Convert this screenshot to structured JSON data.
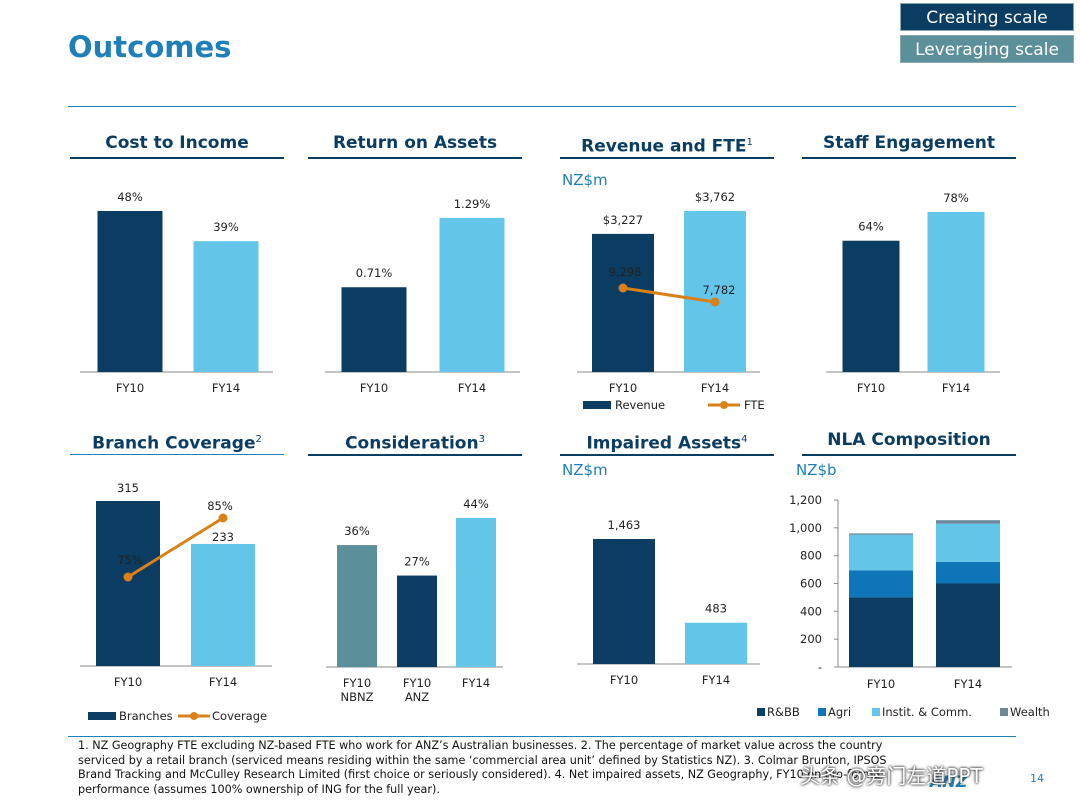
{
  "header": {
    "title": "Outcomes",
    "tags": [
      "Creating scale",
      "Leveraging scale"
    ]
  },
  "colors": {
    "dark": "#0b3d63",
    "light": "#63c5e8",
    "teal": "#5b8f99",
    "mid": "#0e75b8",
    "orange": "#d98118",
    "grey": "#6a8a99"
  },
  "panels": [
    {
      "title": "Cost to Income",
      "sup": ""
    },
    {
      "title": "Return on Assets",
      "sup": ""
    },
    {
      "title": "Revenue and FTE",
      "sup": "1",
      "unit": "NZ$m"
    },
    {
      "title": "Staff Engagement",
      "sup": ""
    },
    {
      "title": "Branch Coverage",
      "sup": "2"
    },
    {
      "title": "Consideration",
      "sup": "3"
    },
    {
      "title": "Impaired Assets",
      "sup": "4",
      "unit": "NZ$m"
    },
    {
      "title": "NLA Composition",
      "sup": "",
      "unit": "NZ$b"
    }
  ],
  "chart_data": [
    {
      "type": "bar",
      "title": "Cost to Income",
      "categories": [
        "FY10",
        "FY14"
      ],
      "values": [
        48,
        39
      ],
      "labels": [
        "48%",
        "39%"
      ]
    },
    {
      "type": "bar",
      "title": "Return on Assets",
      "categories": [
        "FY10",
        "FY14"
      ],
      "values": [
        0.71,
        1.29
      ],
      "labels": [
        "0.71%",
        "1.29%"
      ]
    },
    {
      "type": "bar",
      "title": "Revenue and FTE",
      "categories": [
        "FY10",
        "FY14"
      ],
      "series": [
        {
          "name": "Revenue",
          "values": [
            3227,
            3762
          ],
          "labels": [
            "$3,227",
            "$3,762"
          ]
        },
        {
          "name": "FTE",
          "values": [
            9298,
            7782
          ],
          "labels": [
            "9,298",
            "7,782"
          ],
          "kind": "line"
        }
      ],
      "legend": [
        "Revenue",
        "FTE"
      ]
    },
    {
      "type": "bar",
      "title": "Staff Engagement",
      "categories": [
        "FY10",
        "FY14"
      ],
      "values": [
        64,
        78
      ],
      "labels": [
        "64%",
        "78%"
      ]
    },
    {
      "type": "bar",
      "title": "Branch Coverage",
      "categories": [
        "FY10",
        "FY14"
      ],
      "series": [
        {
          "name": "Branches",
          "values": [
            315,
            233
          ],
          "labels": [
            "315",
            "233"
          ]
        },
        {
          "name": "Coverage",
          "values": [
            75,
            85
          ],
          "labels": [
            "75%",
            "85%"
          ],
          "kind": "line"
        }
      ],
      "legend": [
        "Branches",
        "Coverage"
      ]
    },
    {
      "type": "bar",
      "title": "Consideration",
      "categories": [
        "FY10 NBNZ",
        "FY10 ANZ",
        "FY14"
      ],
      "values": [
        36,
        27,
        44
      ],
      "labels": [
        "36%",
        "27%",
        "44%"
      ]
    },
    {
      "type": "bar",
      "title": "Impaired Assets",
      "categories": [
        "FY10",
        "FY14"
      ],
      "values": [
        1463,
        483
      ],
      "labels": [
        "1,463",
        "483"
      ]
    },
    {
      "type": "bar",
      "title": "NLA Composition",
      "stacked": true,
      "categories": [
        "FY10",
        "FY14"
      ],
      "series": [
        {
          "name": "R&BB",
          "values": [
            500,
            600
          ]
        },
        {
          "name": "Agri",
          "values": [
            195,
            155
          ]
        },
        {
          "name": "Instit. & Comm.",
          "values": [
            255,
            275
          ]
        },
        {
          "name": "Wealth",
          "values": [
            10,
            25
          ]
        }
      ],
      "yticks": [
        "-",
        "200",
        "400",
        "600",
        "800",
        "1,000",
        "1,200"
      ],
      "ylim": [
        0,
        1200
      ],
      "legend": [
        "R&BB",
        "Agri",
        "Instit. & Comm.",
        "Wealth"
      ]
    }
  ],
  "footnotes": "1. NZ Geography FTE excluding NZ-based FTE who work for ANZ’s Australian businesses. 2. The percentage of market value across the country serviced by a retail branch (serviced means residing within the same ‘commercial area unit’ defined by Statistics NZ). 3. Colmar Brunton, IPSOS Brand Tracking and McCulley Research Limited (first choice or seriously considered). 4. Net impaired assets, NZ Geography, FY10 on pro-forma performance (assumes 100% ownership of ING for the full year).",
  "page_number": "14",
  "logo_text": "ANZ",
  "watermark": "头条 @旁门左道PPT"
}
